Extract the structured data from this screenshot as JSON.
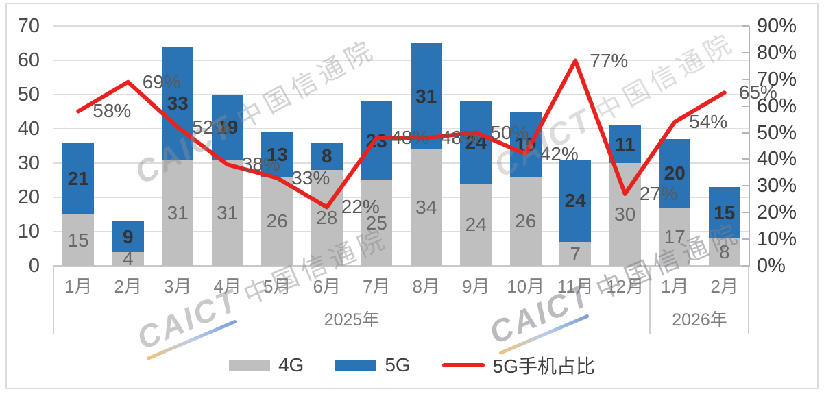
{
  "chart_data": {
    "type": "bar",
    "subtype": "stacked-bar-with-line",
    "categories": [
      "1月",
      "2月",
      "3月",
      "4月",
      "5月",
      "6月",
      "7月",
      "8月",
      "9月",
      "10月",
      "11月",
      "12月",
      "1月",
      "2月"
    ],
    "groups": [
      {
        "label": "2025年",
        "start": 0,
        "count": 12
      },
      {
        "label": "2026年",
        "start": 12,
        "count": 2
      }
    ],
    "series": [
      {
        "name": "4G",
        "type": "bar",
        "color": "#bfbfbf",
        "values": [
          15,
          4,
          31,
          31,
          26,
          28,
          25,
          34,
          24,
          26,
          7,
          30,
          17,
          8
        ]
      },
      {
        "name": "5G",
        "type": "bar",
        "color": "#2a73b5",
        "values": [
          21,
          9,
          33,
          19,
          13,
          8,
          23,
          31,
          24,
          19,
          24,
          11,
          20,
          15
        ]
      },
      {
        "name": "5G手机占比",
        "type": "line",
        "color": "#e8231f",
        "unit": "%",
        "values": [
          58,
          69,
          52,
          38,
          33,
          22,
          48,
          48,
          50,
          42,
          77,
          27,
          54,
          65
        ]
      }
    ],
    "left_axis": {
      "min": 0,
      "max": 70,
      "ticks": [
        0,
        10,
        20,
        30,
        40,
        50,
        60,
        70
      ]
    },
    "right_axis": {
      "min": 0,
      "max": 90,
      "unit": "%",
      "ticks": [
        0,
        10,
        20,
        30,
        40,
        50,
        60,
        70,
        80,
        90
      ]
    },
    "grid": true,
    "legend_position": "bottom",
    "title": ""
  },
  "legend": {
    "items": [
      {
        "label": "4G",
        "color": "#bfbfbf",
        "marker": "swatch"
      },
      {
        "label": "5G",
        "color": "#2a73b5",
        "marker": "swatch"
      },
      {
        "label": "5G手机占比",
        "color": "#e8231f",
        "marker": "line"
      }
    ]
  },
  "watermarks": {
    "latin": "CAICT",
    "cn": "中国信通院",
    "full": "CAICT 中国信通院"
  }
}
